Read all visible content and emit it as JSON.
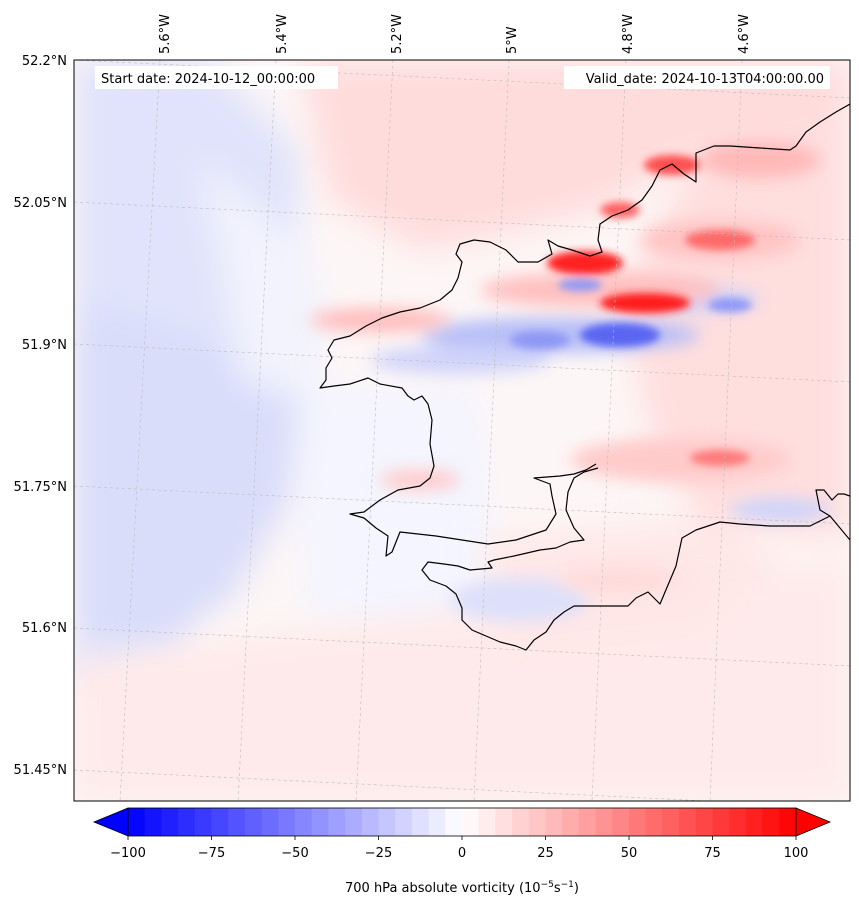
{
  "header": {
    "start_date": "Start date: 2024-10-12_00:00:00",
    "valid_date": "Valid_date: 2024-10-13T04:00:00.00"
  },
  "map": {
    "lon_labels": [
      "5.6°W",
      "5.4°W",
      "5.2°W",
      "5°W",
      "4.8°W",
      "4.6°W"
    ],
    "lat_labels": [
      "52.2°N",
      "52.05°N",
      "51.9°N",
      "51.75°N",
      "51.6°N",
      "51.45°N"
    ],
    "colors": {
      "negative": "#0000ff",
      "positive": "#ff0000",
      "coast": "#000000",
      "grid": "#bbbbbb"
    }
  },
  "colorbar": {
    "tick_labels": [
      "−100",
      "−75",
      "−50",
      "−25",
      "0",
      "25",
      "50",
      "75",
      "100"
    ],
    "label_main": "700 hPa absolute vorticity (10",
    "label_exp1": "−5",
    "label_mid": "s",
    "label_exp2": "−1",
    "label_end": ")",
    "range": [
      -100,
      100
    ]
  }
}
